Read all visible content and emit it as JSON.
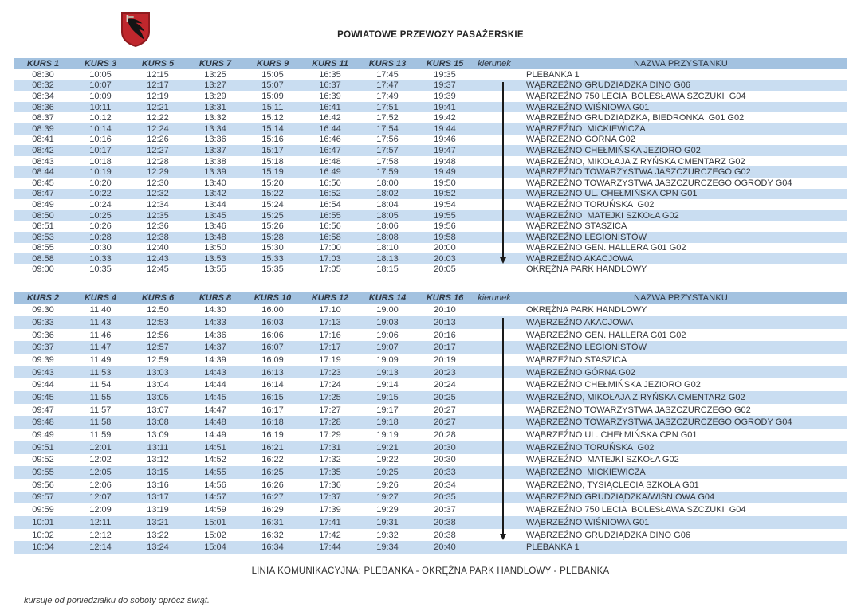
{
  "header": {
    "title": "POWIATOWE PRZEWOZY PASAŻERSKIE",
    "logo": "wabrzezno-county-coat-of-arms"
  },
  "tables": [
    {
      "kurs_headers": [
        "KURS 1",
        "KURS 3",
        "KURS 5",
        "KURS 7",
        "KURS 9",
        "KURS 11",
        "KURS 13",
        "KURS 15"
      ],
      "kierunek_label": "kierunek",
      "stop_header": "NAZWA PRZYSTANKU",
      "arrow_from_row": 2,
      "arrow_to_row": 18,
      "rows": [
        {
          "times": [
            "08:30",
            "10:05",
            "12:15",
            "13:25",
            "15:05",
            "16:35",
            "17:45",
            "19:35"
          ],
          "stop": "PLEBANKA 1"
        },
        {
          "times": [
            "08:32",
            "10:07",
            "12:17",
            "13:27",
            "15:07",
            "16:37",
            "17:47",
            "19:37"
          ],
          "stop": "WĄBRZEŹNO GRUDZIADZKA DINO G06"
        },
        {
          "times": [
            "08:34",
            "10:09",
            "12:19",
            "13:29",
            "15:09",
            "16:39",
            "17:49",
            "19:39"
          ],
          "stop": "WĄBRZEŹNO 750 LECIA  BOLESŁAWA SZCZUKI  G04"
        },
        {
          "times": [
            "08:36",
            "10:11",
            "12:21",
            "13:31",
            "15:11",
            "16:41",
            "17:51",
            "19:41"
          ],
          "stop": "WĄBRZEŹNO WIŚNIOWA G01"
        },
        {
          "times": [
            "08:37",
            "10:12",
            "12:22",
            "13:32",
            "15:12",
            "16:42",
            "17:52",
            "19:42"
          ],
          "stop": "WĄBRZEŹNO GRUDZIĄDZKA, BIEDRONKA  G01 G02"
        },
        {
          "times": [
            "08:39",
            "10:14",
            "12:24",
            "13:34",
            "15:14",
            "16:44",
            "17:54",
            "19:44"
          ],
          "stop": "WĄBRZEŹNO  MICKIEWICZA"
        },
        {
          "times": [
            "08:41",
            "10:16",
            "12:26",
            "13:36",
            "15:16",
            "16:46",
            "17:56",
            "19:46"
          ],
          "stop": "WĄBRZEŹNO GÓRNA G02"
        },
        {
          "times": [
            "08:42",
            "10:17",
            "12:27",
            "13:37",
            "15:17",
            "16:47",
            "17:57",
            "19:47"
          ],
          "stop": "WĄBRZEŹNO CHEŁMIŃSKA JEZIORO G02"
        },
        {
          "times": [
            "08:43",
            "10:18",
            "12:28",
            "13:38",
            "15:18",
            "16:48",
            "17:58",
            "19:48"
          ],
          "stop": "WĄBRZEŹNO, MIKOŁAJA Z RYŃSKA CMENTARZ G02"
        },
        {
          "times": [
            "08:44",
            "10:19",
            "12:29",
            "13:39",
            "15:19",
            "16:49",
            "17:59",
            "19:49"
          ],
          "stop": "WĄBRZEŹNO TOWARZYSTWA JASZCZURCZEGO G02"
        },
        {
          "times": [
            "08:45",
            "10:20",
            "12:30",
            "13:40",
            "15:20",
            "16:50",
            "18:00",
            "19:50"
          ],
          "stop": "WĄBRZEŹNO TOWARZYSTWA JASZCZURCZEGO OGRODY G04"
        },
        {
          "times": [
            "08:47",
            "10:22",
            "12:32",
            "13:42",
            "15:22",
            "16:52",
            "18:02",
            "19:52"
          ],
          "stop": "WĄBRZEŹNO UL. CHEŁMIŃSKA CPN G01"
        },
        {
          "times": [
            "08:49",
            "10:24",
            "12:34",
            "13:44",
            "15:24",
            "16:54",
            "18:04",
            "19:54"
          ],
          "stop": "WĄBRZEŹNO TORUŃSKA  G02"
        },
        {
          "times": [
            "08:50",
            "10:25",
            "12:35",
            "13:45",
            "15:25",
            "16:55",
            "18:05",
            "19:55"
          ],
          "stop": "WĄBRZEŹNO  MATEJKI SZKOŁA G02"
        },
        {
          "times": [
            "08:51",
            "10:26",
            "12:36",
            "13:46",
            "15:26",
            "16:56",
            "18:06",
            "19:56"
          ],
          "stop": "WĄBRZEŹNO STASZICA"
        },
        {
          "times": [
            "08:53",
            "10:28",
            "12:38",
            "13:48",
            "15:28",
            "16:58",
            "18:08",
            "19:58"
          ],
          "stop": "WĄBRZEŹNO LEGIONISTÓW"
        },
        {
          "times": [
            "08:55",
            "10:30",
            "12:40",
            "13:50",
            "15:30",
            "17:00",
            "18:10",
            "20:00"
          ],
          "stop": "WĄBRZEŹNO GEN. HALLERA G01 G02"
        },
        {
          "times": [
            "08:58",
            "10:33",
            "12:43",
            "13:53",
            "15:33",
            "17:03",
            "18:13",
            "20:03"
          ],
          "stop": "WĄBRZEŹNO AKACJOWA"
        },
        {
          "times": [
            "09:00",
            "10:35",
            "12:45",
            "13:55",
            "15:35",
            "17:05",
            "18:15",
            "20:05"
          ],
          "stop": "OKRĘŻNA PARK HANDLOWY"
        }
      ]
    },
    {
      "kurs_headers": [
        "KURS 2",
        "KURS 4",
        "KURS 6",
        "KURS 8",
        "KURS 10",
        "KURS 12",
        "KURS 14",
        "KURS 16"
      ],
      "kierunek_label": "kierunek",
      "stop_header": "NAZWA PRZYSTANKU",
      "arrow_from_row": 2,
      "arrow_to_row": 19,
      "rows": [
        {
          "times": [
            "09:30",
            "11:40",
            "12:50",
            "14:30",
            "16:00",
            "17:10",
            "19:00",
            "20:10"
          ],
          "stop": "OKRĘŻNA PARK HANDLOWY"
        },
        {
          "times": [
            "09:33",
            "11:43",
            "12:53",
            "14:33",
            "16:03",
            "17:13",
            "19:03",
            "20:13"
          ],
          "stop": "WĄBRZEŹNO AKACJOWA"
        },
        {
          "times": [
            "09:36",
            "11:46",
            "12:56",
            "14:36",
            "16:06",
            "17:16",
            "19:06",
            "20:16"
          ],
          "stop": "WĄBRZEŹNO GEN. HALLERA G01 G02"
        },
        {
          "times": [
            "09:37",
            "11:47",
            "12:57",
            "14:37",
            "16:07",
            "17:17",
            "19:07",
            "20:17"
          ],
          "stop": "WĄBRZEŹNO LEGIONISTÓW"
        },
        {
          "times": [
            "09:39",
            "11:49",
            "12:59",
            "14:39",
            "16:09",
            "17:19",
            "19:09",
            "20:19"
          ],
          "stop": "WĄBRZEŹNO STASZICA"
        },
        {
          "times": [
            "09:43",
            "11:53",
            "13:03",
            "14:43",
            "16:13",
            "17:23",
            "19:13",
            "20:23"
          ],
          "stop": "WĄBRZEŹNO GÓRNA G02"
        },
        {
          "times": [
            "09:44",
            "11:54",
            "13:04",
            "14:44",
            "16:14",
            "17:24",
            "19:14",
            "20:24"
          ],
          "stop": "WĄBRZEŹNO CHEŁMIŃSKA JEZIORO G02"
        },
        {
          "times": [
            "09:45",
            "11:55",
            "13:05",
            "14:45",
            "16:15",
            "17:25",
            "19:15",
            "20:25"
          ],
          "stop": "WĄBRZEŹNO, MIKOŁAJA Z RYŃSKA CMENTARZ G02"
        },
        {
          "times": [
            "09:47",
            "11:57",
            "13:07",
            "14:47",
            "16:17",
            "17:27",
            "19:17",
            "20:27"
          ],
          "stop": "WĄBRZEŹNO TOWARZYSTWA JASZCZURCZEGO G02"
        },
        {
          "times": [
            "09:48",
            "11:58",
            "13:08",
            "14:48",
            "16:18",
            "17:28",
            "19:18",
            "20:27"
          ],
          "stop": "WĄBRZEŹNO TOWARZYSTWA JASZCZURCZEGO OGRODY G04"
        },
        {
          "times": [
            "09:49",
            "11:59",
            "13:09",
            "14:49",
            "16:19",
            "17:29",
            "19:19",
            "20:28"
          ],
          "stop": "WĄBRZEŹNO UL. CHEŁMIŃSKA CPN G01"
        },
        {
          "times": [
            "09:51",
            "12:01",
            "13:11",
            "14:51",
            "16:21",
            "17:31",
            "19:21",
            "20:30"
          ],
          "stop": "WĄBRZEŹNO TORUŃSKA  G02"
        },
        {
          "times": [
            "09:52",
            "12:02",
            "13:12",
            "14:52",
            "16:22",
            "17:32",
            "19:22",
            "20:30"
          ],
          "stop": "WĄBRZEŹNO  MATEJKI SZKOŁA G02"
        },
        {
          "times": [
            "09:55",
            "12:05",
            "13:15",
            "14:55",
            "16:25",
            "17:35",
            "19:25",
            "20:33"
          ],
          "stop": "WĄBRZEŹNO  MICKIEWICZA"
        },
        {
          "times": [
            "09:56",
            "12:06",
            "13:16",
            "14:56",
            "16:26",
            "17:36",
            "19:26",
            "20:34"
          ],
          "stop": "WĄBRZEŹNO, TYSIĄCLECIA SZKOŁA G01"
        },
        {
          "times": [
            "09:57",
            "12:07",
            "13:17",
            "14:57",
            "16:27",
            "17:37",
            "19:27",
            "20:35"
          ],
          "stop": "WĄBRZEŹNO GRUDZIĄDZKA/WIŚNIOWA G04"
        },
        {
          "times": [
            "09:59",
            "12:09",
            "13:19",
            "14:59",
            "16:29",
            "17:39",
            "19:29",
            "20:37"
          ],
          "stop": "WĄBRZEŹNO 750 LECIA  BOLESŁAWA SZCZUKI  G04"
        },
        {
          "times": [
            "10:01",
            "12:11",
            "13:21",
            "15:01",
            "16:31",
            "17:41",
            "19:31",
            "20:38"
          ],
          "stop": "WĄBRZEŹNO WIŚNIOWA G01"
        },
        {
          "times": [
            "10:02",
            "12:12",
            "13:22",
            "15:02",
            "16:32",
            "17:42",
            "19:32",
            "20:38"
          ],
          "stop": "WĄBRZEŹNO GRUDZIĄDZKA DINO G06"
        },
        {
          "times": [
            "10:04",
            "12:14",
            "13:24",
            "15:04",
            "16:34",
            "17:44",
            "19:34",
            "20:40"
          ],
          "stop": "PLEBANKA 1"
        }
      ]
    }
  ],
  "footer": {
    "line_title": "LINIA KOMUNIKACYJNA: PLEBANKA - OKRĘŻNA PARK HANDLOWY - PLEBANKA",
    "service_note": "kursuje od poniedziałku do soboty oprócz świąt."
  },
  "colors": {
    "header_row_bg": "#a3c2e0",
    "stripe_bg": "#c9ddf1",
    "shield_red": "#c0272d",
    "shield_border": "#8f1b1f",
    "arrow": "#1a1a1a"
  }
}
